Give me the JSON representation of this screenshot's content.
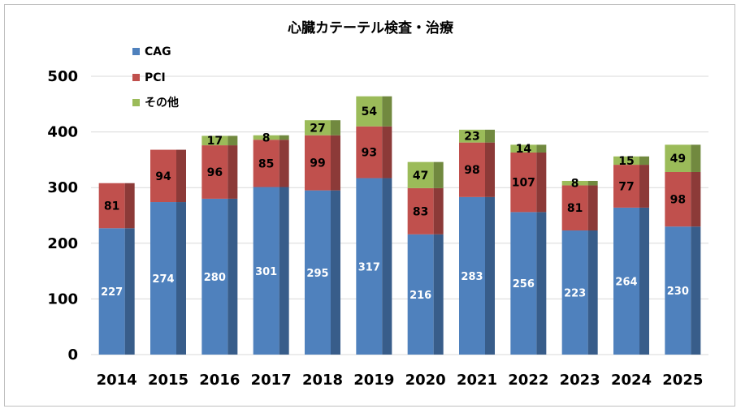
{
  "chart_data": {
    "type": "bar",
    "stacked": true,
    "title": "心臓カテーテル検査・治療",
    "categories": [
      "2014",
      "2015",
      "2016",
      "2017",
      "2018",
      "2019",
      "2020",
      "2021",
      "2022",
      "2023",
      "2024",
      "2025"
    ],
    "series": [
      {
        "name": "CAG",
        "color": "#4f81bd",
        "side_color": "#385d8a",
        "values": [
          227,
          274,
          280,
          301,
          295,
          317,
          216,
          283,
          256,
          223,
          264,
          230
        ]
      },
      {
        "name": "PCI",
        "color": "#c0504d",
        "side_color": "#8c3a38",
        "values": [
          81,
          94,
          96,
          85,
          99,
          93,
          83,
          98,
          107,
          81,
          77,
          98
        ]
      },
      {
        "name": "その他",
        "color": "#9bbb59",
        "side_color": "#71893f",
        "values": [
          0,
          0,
          17,
          8,
          27,
          54,
          47,
          23,
          14,
          8,
          15,
          49
        ]
      }
    ],
    "yticks": [
      "0",
      "100",
      "200",
      "300",
      "400",
      "500"
    ],
    "ylim": [
      0,
      500
    ],
    "grid": true,
    "legend_position": "top-left"
  }
}
